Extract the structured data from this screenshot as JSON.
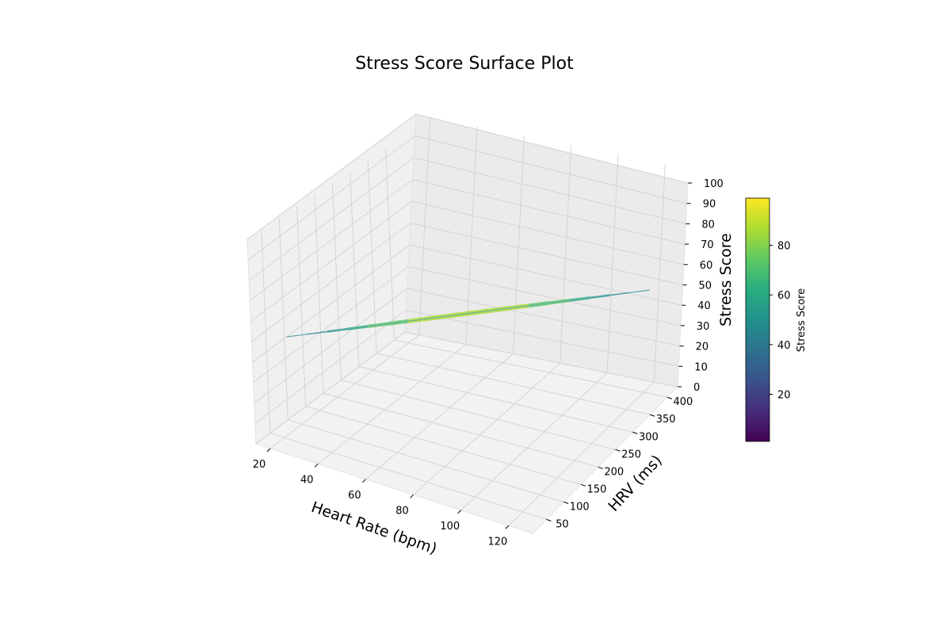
{
  "chart_data": {
    "type": "surface3d",
    "title": "Stress Score Surface Plot",
    "xlabel": "Heart Rate (bpm)",
    "ylabel": "HRV (ms)",
    "zlabel": "Stress Score",
    "x_ticks": [
      20,
      40,
      60,
      80,
      100,
      120
    ],
    "y_ticks": [
      50,
      100,
      150,
      200,
      250,
      300,
      350,
      400
    ],
    "z_ticks": [
      0,
      10,
      20,
      30,
      40,
      50,
      60,
      70,
      80,
      90,
      100
    ],
    "xlim": [
      14,
      130
    ],
    "ylim": [
      10,
      430
    ],
    "zlim": [
      0,
      100
    ],
    "surface": {
      "x_range": [
        20,
        130
      ],
      "y_range": [
        20,
        400
      ],
      "z_range": [
        0,
        99
      ],
      "colormap": "viridis",
      "alpha": 0.8
    },
    "colorbar": {
      "label": "Stress Score",
      "ticks": [
        20,
        40,
        60,
        80
      ],
      "range": [
        1,
        99
      ]
    },
    "grid": true
  }
}
